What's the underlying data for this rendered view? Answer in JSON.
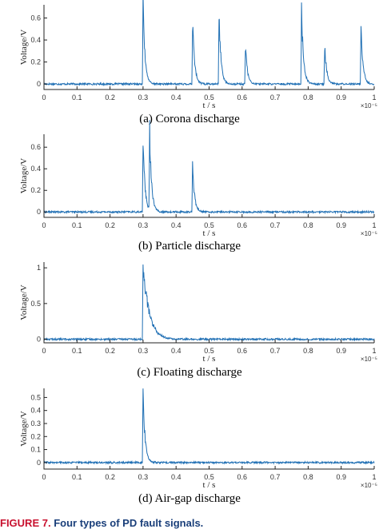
{
  "figure_caption": {
    "label": "FIGURE 7.",
    "text": "Four types of PD fault signals."
  },
  "chart_data": [
    {
      "type": "line",
      "caption": "(a) Corona discharge",
      "xlabel": "t / s",
      "ylabel": "Voltage/V",
      "x_multiplier": "×10⁻⁵",
      "xlim": [
        0,
        1
      ],
      "ylim": [
        -0.05,
        0.72
      ],
      "xticks": [
        "0",
        "0.1",
        "0.2",
        "0.3",
        "0.4",
        "0.5",
        "0.6",
        "0.7",
        "0.8",
        "0.9",
        "1"
      ],
      "yticks": [
        0,
        0.2,
        0.4,
        0.6
      ],
      "yticklabels": [
        "0",
        "0.2",
        "0.4",
        "0.6"
      ],
      "baseline": 0,
      "pulses": [
        {
          "t": 0.3,
          "peak": 0.72
        },
        {
          "t": 0.45,
          "peak": 0.55
        },
        {
          "t": 0.53,
          "peak": 0.65
        },
        {
          "t": 0.61,
          "peak": 0.35
        },
        {
          "t": 0.78,
          "peak": 0.65
        },
        {
          "t": 0.85,
          "peak": 0.35
        },
        {
          "t": 0.96,
          "peak": 0.52
        }
      ]
    },
    {
      "type": "line",
      "caption": "(b) Particle discharge",
      "xlabel": "t / s",
      "ylabel": "Voltage/V",
      "x_multiplier": "×10⁻⁵",
      "xlim": [
        0,
        1
      ],
      "ylim": [
        -0.05,
        0.72
      ],
      "xticks": [
        "0",
        "0.1",
        "0.2",
        "0.3",
        "0.4",
        "0.5",
        "0.6",
        "0.7",
        "0.8",
        "0.9",
        "1"
      ],
      "yticks": [
        0,
        0.2,
        0.4,
        0.6
      ],
      "yticklabels": [
        "0",
        "0.2",
        "0.4",
        "0.6"
      ],
      "baseline": 0,
      "pulses": [
        {
          "t": 0.3,
          "peak": 0.68
        },
        {
          "t": 0.32,
          "peak": 0.72
        },
        {
          "t": 0.45,
          "peak": 0.45
        }
      ]
    },
    {
      "type": "line",
      "caption": "(c) Floating discharge",
      "xlabel": "t / s",
      "ylabel": "Voltage/V",
      "x_multiplier": "×10⁻⁵",
      "xlim": [
        0,
        1
      ],
      "ylim": [
        -0.05,
        1.08
      ],
      "xticks": [
        "0",
        "0.1",
        "0.2",
        "0.3",
        "0.4",
        "0.5",
        "0.6",
        "0.7",
        "0.8",
        "0.9",
        "1"
      ],
      "yticks": [
        0,
        0.5,
        1
      ],
      "yticklabels": [
        "0",
        "0.5",
        "1"
      ],
      "baseline": 0,
      "pulses": [
        {
          "t": 0.3,
          "peak": 1.08
        }
      ]
    },
    {
      "type": "line",
      "caption": "(d) Air-gap discharge",
      "xlabel": "t / s",
      "ylabel": "Voltage/V",
      "x_multiplier": "×10⁻⁵",
      "xlim": [
        0,
        1
      ],
      "ylim": [
        -0.05,
        0.57
      ],
      "xticks": [
        "0",
        "0.1",
        "0.2",
        "0.3",
        "0.4",
        "0.5",
        "0.6",
        "0.7",
        "0.8",
        "0.9",
        "1"
      ],
      "yticks": [
        0,
        0.1,
        0.2,
        0.3,
        0.4,
        0.5
      ],
      "yticklabels": [
        "0",
        "0.1",
        "0.2",
        "0.3",
        "0.4",
        "0.5"
      ],
      "baseline": 0,
      "pulses": [
        {
          "t": 0.3,
          "peak": 0.55
        }
      ]
    }
  ]
}
